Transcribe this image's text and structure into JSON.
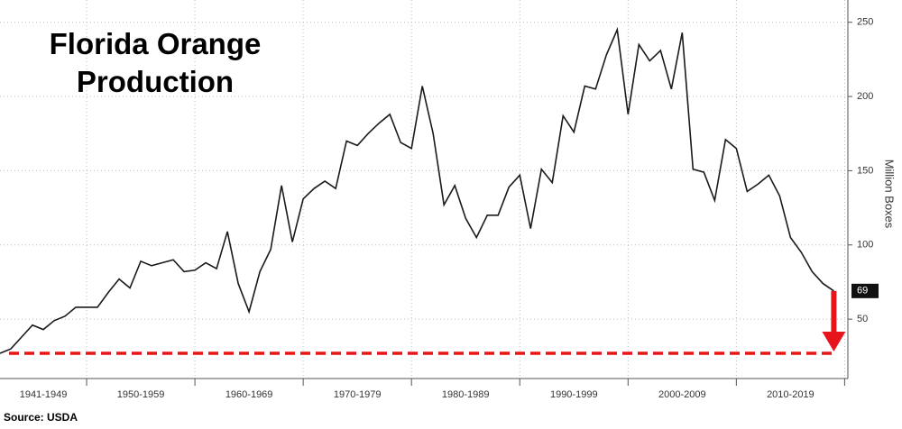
{
  "chart_data": {
    "type": "line",
    "title": "Florida Orange Production",
    "y_label": "Million Boxes",
    "source": "Source: USDA",
    "decade_labels": [
      "1941-1949",
      "1950-1959",
      "1960-1969",
      "1970-1979",
      "1980-1989",
      "1990-1999",
      "2000-2009",
      "2010-2019"
    ],
    "x": [
      1942,
      1943,
      1944,
      1945,
      1946,
      1947,
      1948,
      1949,
      1950,
      1951,
      1952,
      1953,
      1954,
      1955,
      1956,
      1957,
      1958,
      1959,
      1960,
      1961,
      1962,
      1963,
      1964,
      1965,
      1966,
      1967,
      1968,
      1969,
      1970,
      1971,
      1972,
      1973,
      1974,
      1975,
      1976,
      1977,
      1978,
      1979,
      1980,
      1981,
      1982,
      1983,
      1984,
      1985,
      1986,
      1987,
      1988,
      1989,
      1990,
      1991,
      1992,
      1993,
      1994,
      1995,
      1996,
      1997,
      1998,
      1999,
      2000,
      2001,
      2002,
      2003,
      2004,
      2005,
      2006,
      2007,
      2008,
      2009,
      2010,
      2011,
      2012,
      2013,
      2014,
      2015,
      2016,
      2017,
      2018,
      2019
    ],
    "series": [
      {
        "name": "Florida Orange Production",
        "color": "#1a1a1a",
        "values": [
          27,
          30,
          38,
          46,
          43,
          49,
          52,
          58,
          58,
          58,
          68,
          77,
          71,
          89,
          86,
          88,
          90,
          82,
          83,
          88,
          84,
          109,
          74,
          55,
          82,
          97,
          140,
          102,
          131,
          138,
          143,
          138,
          170,
          167,
          175,
          182,
          188,
          169,
          165,
          207,
          175,
          127,
          140,
          118,
          105,
          120,
          120,
          139,
          147,
          111,
          151,
          142,
          187,
          176,
          207,
          205,
          228,
          245,
          188,
          235,
          224,
          231,
          205,
          243,
          151,
          149,
          130,
          171,
          165,
          136,
          141,
          147,
          133,
          105,
          95,
          82,
          74,
          69
        ]
      }
    ],
    "reference_line": 27,
    "reference_color": "#e8141b",
    "xlim": [
      1942,
      2020.3
    ],
    "xticks": [
      1950,
      1960,
      1970,
      1980,
      1990,
      2000,
      2010,
      2020
    ],
    "ylim": [
      10,
      265
    ],
    "yticks": [
      50,
      100,
      150,
      200,
      250
    ],
    "grid": true
  }
}
